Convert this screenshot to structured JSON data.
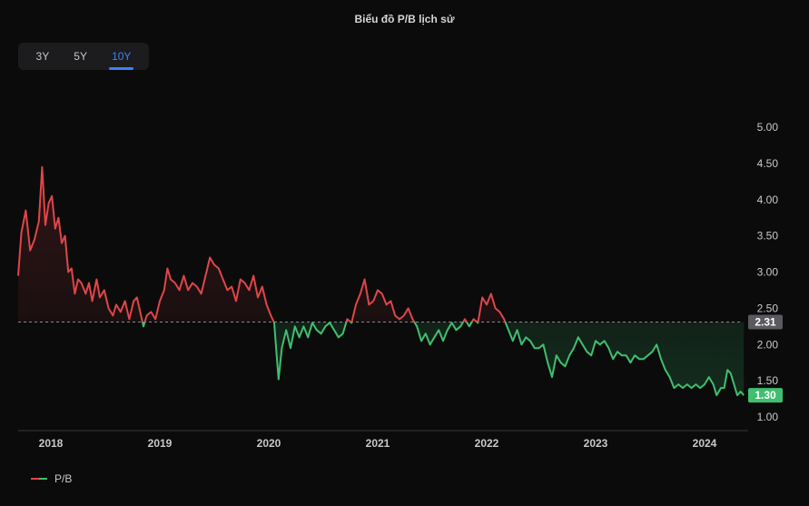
{
  "title": "Biểu đồ P/B lịch sử",
  "ranges": [
    {
      "label": "3Y",
      "active": false
    },
    {
      "label": "5Y",
      "active": false
    },
    {
      "label": "10Y",
      "active": true
    }
  ],
  "colors": {
    "above": "#e04648",
    "below": "#3fbf6f",
    "reference_badge": "#5a5a5e",
    "current_badge": "#3fbf6f",
    "active_tab": "#3b82f6"
  },
  "chart_data": {
    "type": "line",
    "xlabel": "",
    "ylabel": "",
    "ylim": [
      0.8,
      5.2
    ],
    "y_ticks": [
      "5.00",
      "4.50",
      "4.00",
      "3.50",
      "3.00",
      "2.50",
      "2.00",
      "1.50",
      "1.00"
    ],
    "x_ticks": [
      "2018",
      "2019",
      "2020",
      "2021",
      "2022",
      "2023",
      "2024"
    ],
    "reference_value": 2.31,
    "reference_label": "2.31",
    "current_value": 1.3,
    "current_label": "1.30",
    "series": [
      {
        "name": "P/B",
        "points": [
          [
            2017.85,
            2.95
          ],
          [
            2017.88,
            3.55
          ],
          [
            2017.92,
            3.85
          ],
          [
            2017.96,
            3.3
          ],
          [
            2018.0,
            3.45
          ],
          [
            2018.04,
            3.7
          ],
          [
            2018.07,
            4.45
          ],
          [
            2018.1,
            3.65
          ],
          [
            2018.13,
            3.95
          ],
          [
            2018.16,
            4.05
          ],
          [
            2018.19,
            3.6
          ],
          [
            2018.22,
            3.75
          ],
          [
            2018.25,
            3.4
          ],
          [
            2018.28,
            3.5
          ],
          [
            2018.31,
            3.0
          ],
          [
            2018.34,
            3.05
          ],
          [
            2018.37,
            2.7
          ],
          [
            2018.4,
            2.9
          ],
          [
            2018.43,
            2.85
          ],
          [
            2018.47,
            2.7
          ],
          [
            2018.5,
            2.85
          ],
          [
            2018.53,
            2.6
          ],
          [
            2018.57,
            2.9
          ],
          [
            2018.6,
            2.65
          ],
          [
            2018.64,
            2.75
          ],
          [
            2018.68,
            2.5
          ],
          [
            2018.72,
            2.4
          ],
          [
            2018.75,
            2.55
          ],
          [
            2018.79,
            2.45
          ],
          [
            2018.83,
            2.6
          ],
          [
            2018.87,
            2.35
          ],
          [
            2018.91,
            2.6
          ],
          [
            2018.94,
            2.65
          ],
          [
            2018.97,
            2.45
          ],
          [
            2019.0,
            2.25
          ],
          [
            2019.03,
            2.4
          ],
          [
            2019.07,
            2.45
          ],
          [
            2019.11,
            2.35
          ],
          [
            2019.15,
            2.6
          ],
          [
            2019.19,
            2.75
          ],
          [
            2019.22,
            3.05
          ],
          [
            2019.25,
            2.9
          ],
          [
            2019.29,
            2.85
          ],
          [
            2019.33,
            2.75
          ],
          [
            2019.37,
            2.95
          ],
          [
            2019.41,
            2.75
          ],
          [
            2019.45,
            2.85
          ],
          [
            2019.49,
            2.8
          ],
          [
            2019.53,
            2.7
          ],
          [
            2019.57,
            2.95
          ],
          [
            2019.61,
            3.2
          ],
          [
            2019.65,
            3.1
          ],
          [
            2019.69,
            3.05
          ],
          [
            2019.73,
            2.9
          ],
          [
            2019.77,
            2.75
          ],
          [
            2019.81,
            2.8
          ],
          [
            2019.85,
            2.6
          ],
          [
            2019.89,
            2.9
          ],
          [
            2019.93,
            2.85
          ],
          [
            2019.97,
            2.75
          ],
          [
            2020.01,
            2.95
          ],
          [
            2020.05,
            2.65
          ],
          [
            2020.09,
            2.8
          ],
          [
            2020.13,
            2.55
          ],
          [
            2020.17,
            2.4
          ],
          [
            2020.2,
            2.3
          ],
          [
            2020.22,
            1.9
          ],
          [
            2020.24,
            1.52
          ],
          [
            2020.27,
            1.95
          ],
          [
            2020.31,
            2.2
          ],
          [
            2020.35,
            1.95
          ],
          [
            2020.39,
            2.25
          ],
          [
            2020.43,
            2.1
          ],
          [
            2020.47,
            2.25
          ],
          [
            2020.51,
            2.1
          ],
          [
            2020.55,
            2.3
          ],
          [
            2020.59,
            2.2
          ],
          [
            2020.63,
            2.15
          ],
          [
            2020.67,
            2.25
          ],
          [
            2020.71,
            2.3
          ],
          [
            2020.75,
            2.2
          ],
          [
            2020.79,
            2.1
          ],
          [
            2020.83,
            2.15
          ],
          [
            2020.87,
            2.35
          ],
          [
            2020.91,
            2.3
          ],
          [
            2020.95,
            2.55
          ],
          [
            2020.99,
            2.7
          ],
          [
            2021.03,
            2.9
          ],
          [
            2021.07,
            2.55
          ],
          [
            2021.11,
            2.6
          ],
          [
            2021.15,
            2.75
          ],
          [
            2021.19,
            2.7
          ],
          [
            2021.23,
            2.55
          ],
          [
            2021.27,
            2.6
          ],
          [
            2021.31,
            2.4
          ],
          [
            2021.35,
            2.35
          ],
          [
            2021.39,
            2.4
          ],
          [
            2021.43,
            2.5
          ],
          [
            2021.47,
            2.35
          ],
          [
            2021.51,
            2.25
          ],
          [
            2021.55,
            2.05
          ],
          [
            2021.59,
            2.15
          ],
          [
            2021.63,
            2.0
          ],
          [
            2021.67,
            2.1
          ],
          [
            2021.71,
            2.2
          ],
          [
            2021.75,
            2.05
          ],
          [
            2021.79,
            2.2
          ],
          [
            2021.83,
            2.3
          ],
          [
            2021.87,
            2.2
          ],
          [
            2021.91,
            2.25
          ],
          [
            2021.95,
            2.35
          ],
          [
            2021.99,
            2.25
          ],
          [
            2022.03,
            2.35
          ],
          [
            2022.07,
            2.3
          ],
          [
            2022.11,
            2.65
          ],
          [
            2022.15,
            2.55
          ],
          [
            2022.19,
            2.7
          ],
          [
            2022.23,
            2.5
          ],
          [
            2022.27,
            2.45
          ],
          [
            2022.31,
            2.35
          ],
          [
            2022.35,
            2.2
          ],
          [
            2022.39,
            2.05
          ],
          [
            2022.43,
            2.2
          ],
          [
            2022.47,
            2.0
          ],
          [
            2022.51,
            2.1
          ],
          [
            2022.55,
            2.05
          ],
          [
            2022.59,
            1.95
          ],
          [
            2022.63,
            1.95
          ],
          [
            2022.67,
            2.0
          ],
          [
            2022.71,
            1.75
          ],
          [
            2022.75,
            1.55
          ],
          [
            2022.79,
            1.85
          ],
          [
            2022.83,
            1.75
          ],
          [
            2022.87,
            1.7
          ],
          [
            2022.91,
            1.85
          ],
          [
            2022.95,
            1.95
          ],
          [
            2022.99,
            2.1
          ],
          [
            2023.03,
            2.0
          ],
          [
            2023.07,
            1.9
          ],
          [
            2023.11,
            1.85
          ],
          [
            2023.15,
            2.05
          ],
          [
            2023.19,
            2.0
          ],
          [
            2023.23,
            2.05
          ],
          [
            2023.27,
            1.95
          ],
          [
            2023.31,
            1.8
          ],
          [
            2023.35,
            1.9
          ],
          [
            2023.39,
            1.85
          ],
          [
            2023.43,
            1.85
          ],
          [
            2023.47,
            1.75
          ],
          [
            2023.51,
            1.85
          ],
          [
            2023.55,
            1.8
          ],
          [
            2023.59,
            1.8
          ],
          [
            2023.63,
            1.85
          ],
          [
            2023.67,
            1.9
          ],
          [
            2023.71,
            2.0
          ],
          [
            2023.75,
            1.8
          ],
          [
            2023.79,
            1.65
          ],
          [
            2023.83,
            1.55
          ],
          [
            2023.87,
            1.4
          ],
          [
            2023.91,
            1.45
          ],
          [
            2023.95,
            1.4
          ],
          [
            2023.99,
            1.45
          ],
          [
            2024.03,
            1.4
          ],
          [
            2024.07,
            1.45
          ],
          [
            2024.11,
            1.4
          ],
          [
            2024.15,
            1.45
          ],
          [
            2024.19,
            1.55
          ],
          [
            2024.23,
            1.45
          ],
          [
            2024.26,
            1.3
          ],
          [
            2024.3,
            1.4
          ],
          [
            2024.33,
            1.4
          ],
          [
            2024.36,
            1.65
          ],
          [
            2024.39,
            1.6
          ],
          [
            2024.42,
            1.45
          ],
          [
            2024.45,
            1.3
          ],
          [
            2024.48,
            1.35
          ],
          [
            2024.51,
            1.3
          ]
        ]
      }
    ]
  },
  "legend": {
    "label": "P/B"
  }
}
